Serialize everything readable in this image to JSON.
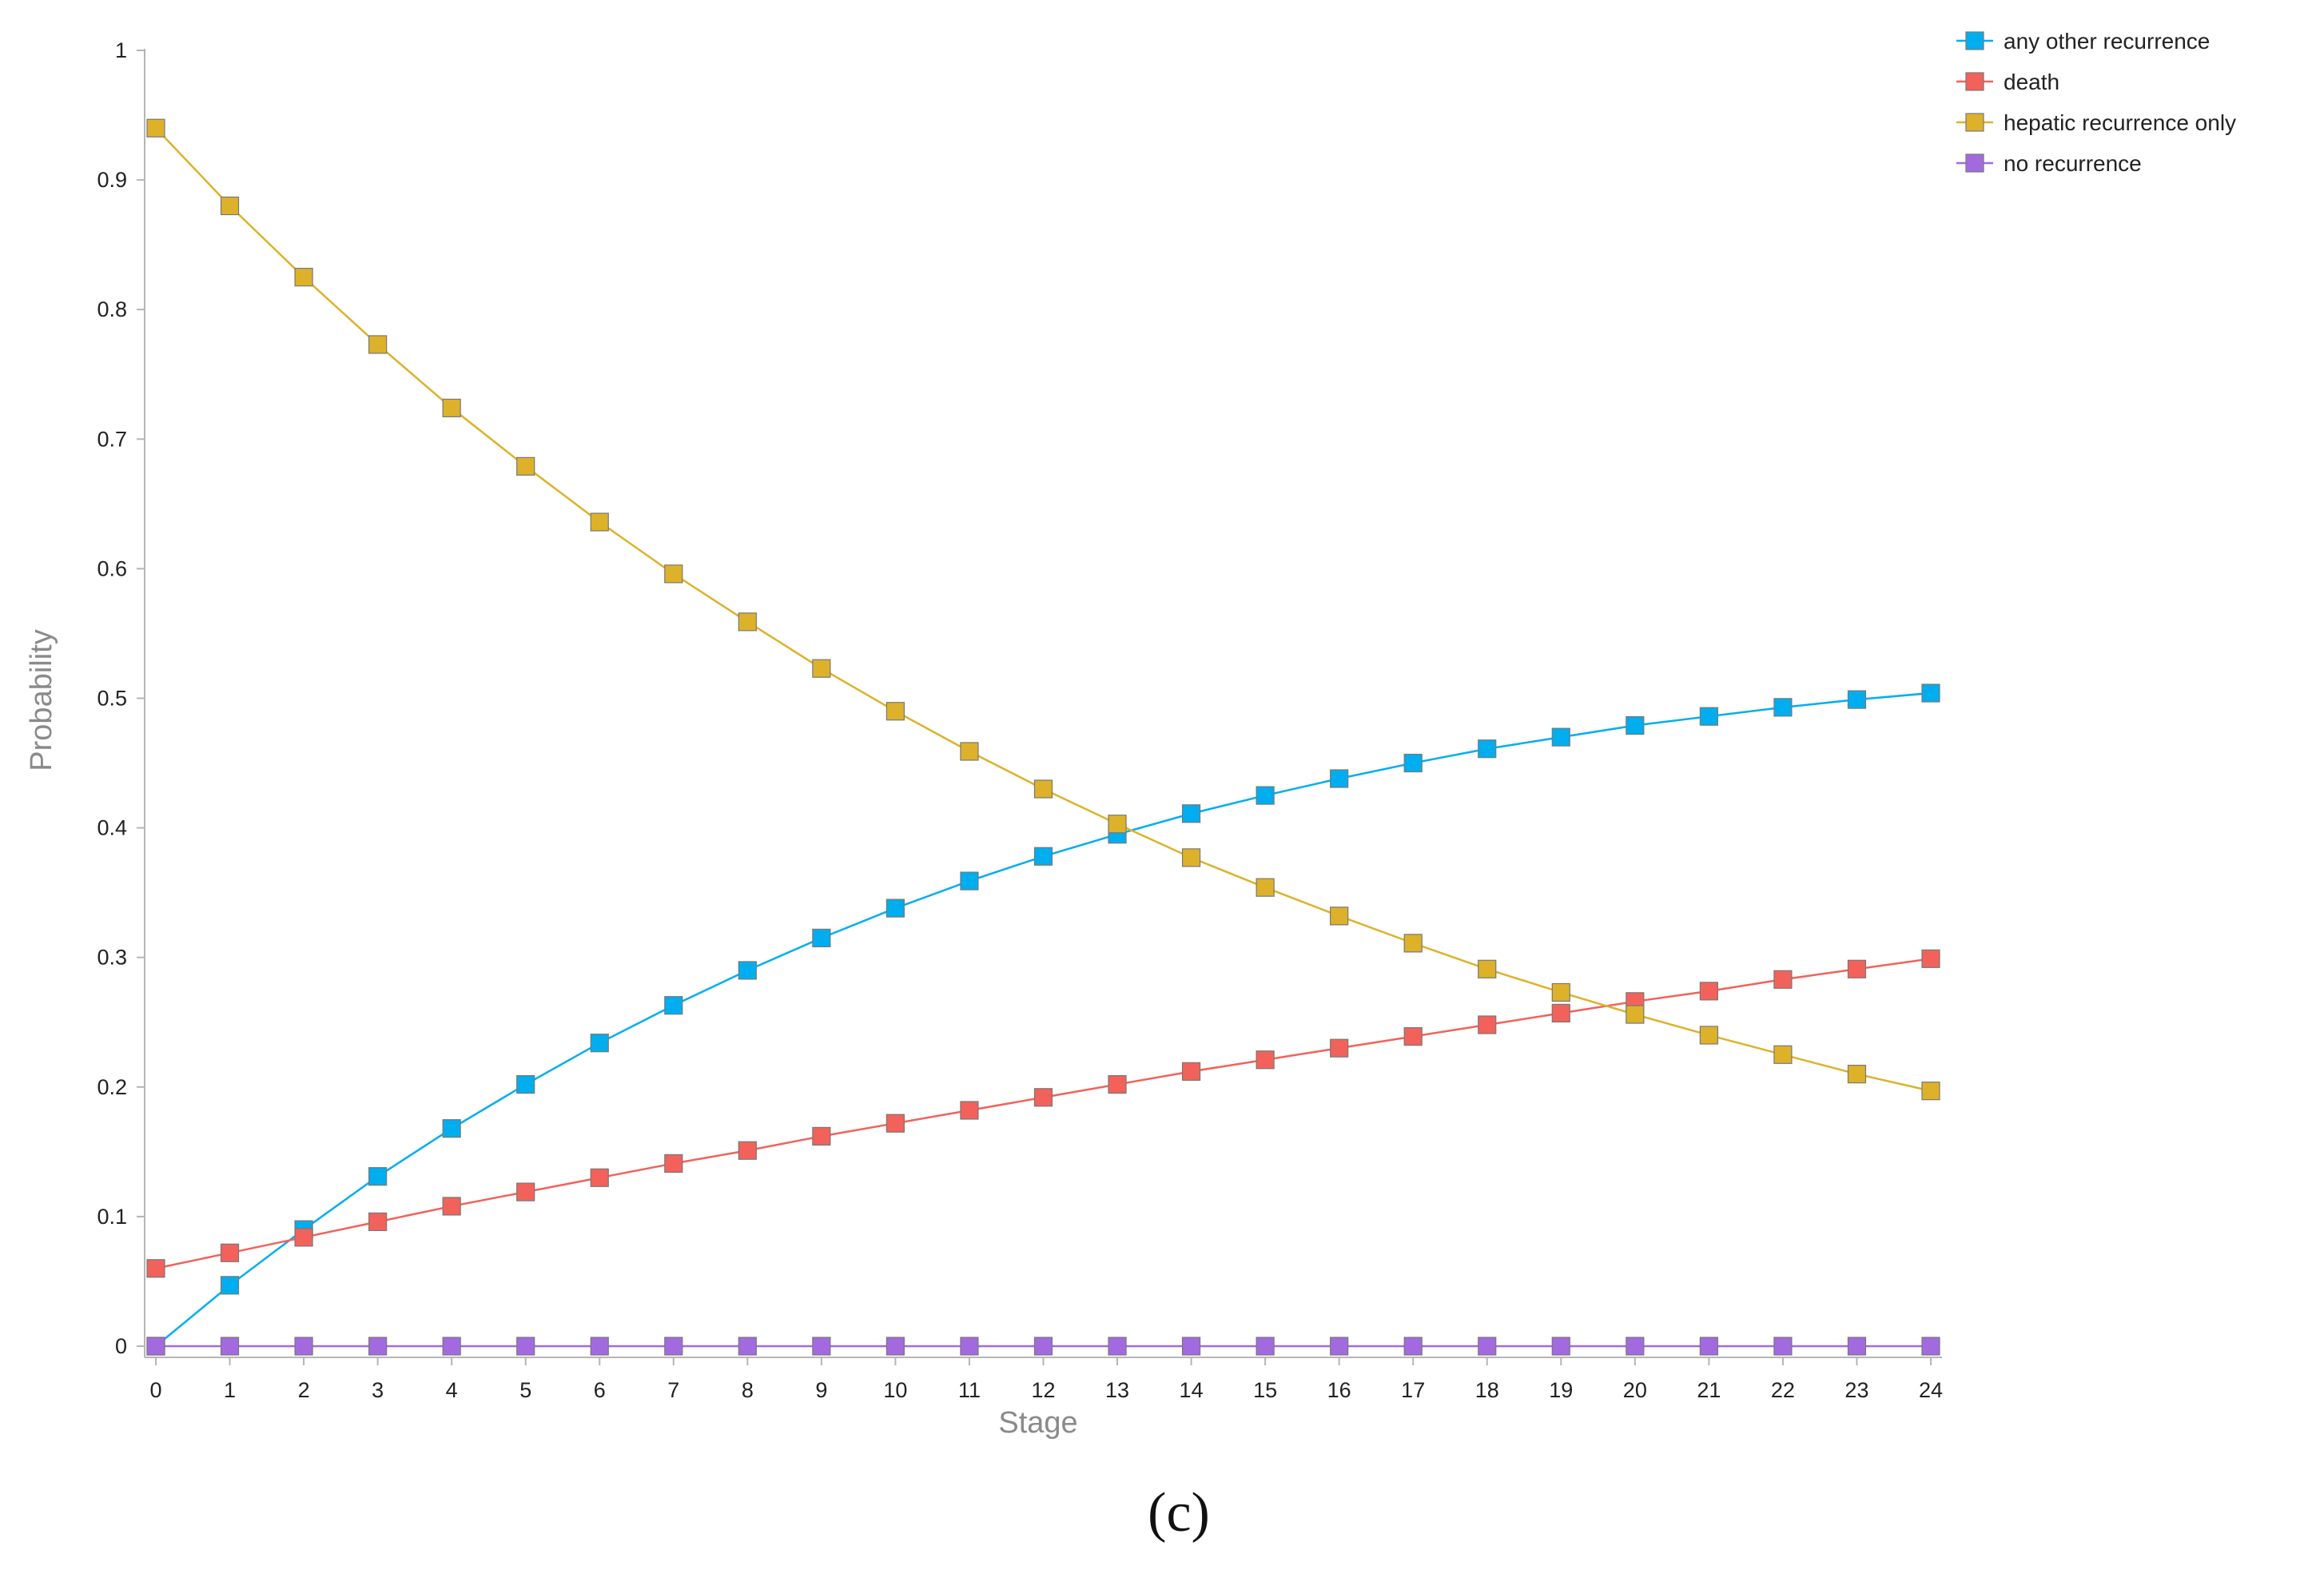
{
  "chart_data": {
    "type": "line",
    "xlabel": "Stage",
    "ylabel": "Probability",
    "panel_label": "(c)",
    "x": [
      0,
      1,
      2,
      3,
      4,
      5,
      6,
      7,
      8,
      9,
      10,
      11,
      12,
      13,
      14,
      15,
      16,
      17,
      18,
      19,
      20,
      21,
      22,
      23,
      24
    ],
    "xlim": [
      0,
      24
    ],
    "ylim": [
      0,
      1
    ],
    "x_ticks": [
      "0",
      "1",
      "2",
      "3",
      "4",
      "5",
      "6",
      "7",
      "8",
      "9",
      "10",
      "11",
      "12",
      "13",
      "14",
      "15",
      "16",
      "17",
      "18",
      "19",
      "20",
      "21",
      "22",
      "23",
      "24"
    ],
    "y_ticks": [
      "0",
      "0.1",
      "0.2",
      "0.3",
      "0.4",
      "0.5",
      "0.6",
      "0.7",
      "0.8",
      "0.9",
      "1"
    ],
    "grid": false,
    "legend_position": "top-right",
    "marker": "square",
    "series": [
      {
        "name": "any other recurrence",
        "color": "#00AEEF",
        "values": [
          0.0,
          0.047,
          0.09,
          0.131,
          0.168,
          0.202,
          0.234,
          0.263,
          0.29,
          0.315,
          0.338,
          0.359,
          0.378,
          0.395,
          0.411,
          0.425,
          0.438,
          0.45,
          0.461,
          0.47,
          0.479,
          0.486,
          0.493,
          0.499,
          0.504
        ]
      },
      {
        "name": "death",
        "color": "#F2625B",
        "values": [
          0.06,
          0.072,
          0.084,
          0.096,
          0.108,
          0.119,
          0.13,
          0.141,
          0.151,
          0.162,
          0.172,
          0.182,
          0.192,
          0.202,
          0.212,
          0.221,
          0.23,
          0.239,
          0.248,
          0.257,
          0.266,
          0.274,
          0.283,
          0.291,
          0.299
        ]
      },
      {
        "name": "hepatic recurrence only",
        "color": "#DDB22A",
        "values": [
          0.94,
          0.88,
          0.825,
          0.773,
          0.724,
          0.679,
          0.636,
          0.596,
          0.559,
          0.523,
          0.49,
          0.459,
          0.43,
          0.403,
          0.377,
          0.354,
          0.332,
          0.311,
          0.291,
          0.273,
          0.256,
          0.24,
          0.225,
          0.21,
          0.197
        ]
      },
      {
        "name": "no recurrence",
        "color": "#A36AE0",
        "values": [
          0,
          0,
          0,
          0,
          0,
          0,
          0,
          0,
          0,
          0,
          0,
          0,
          0,
          0,
          0,
          0,
          0,
          0,
          0,
          0,
          0,
          0,
          0,
          0,
          0
        ]
      }
    ]
  }
}
